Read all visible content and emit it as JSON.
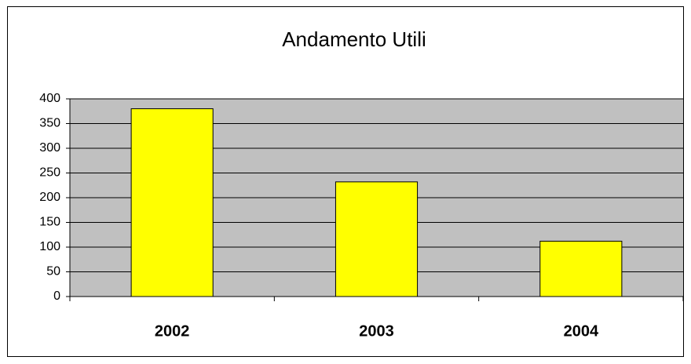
{
  "chart_data": {
    "type": "bar",
    "title": "Andamento Utili",
    "categories": [
      "2002",
      "2003",
      "2004"
    ],
    "values": [
      380,
      232,
      112
    ],
    "color": "#ffff00",
    "ylim": [
      0,
      400
    ],
    "yticks": [
      0,
      50,
      100,
      150,
      200,
      250,
      300,
      350,
      400
    ],
    "grid": true
  }
}
